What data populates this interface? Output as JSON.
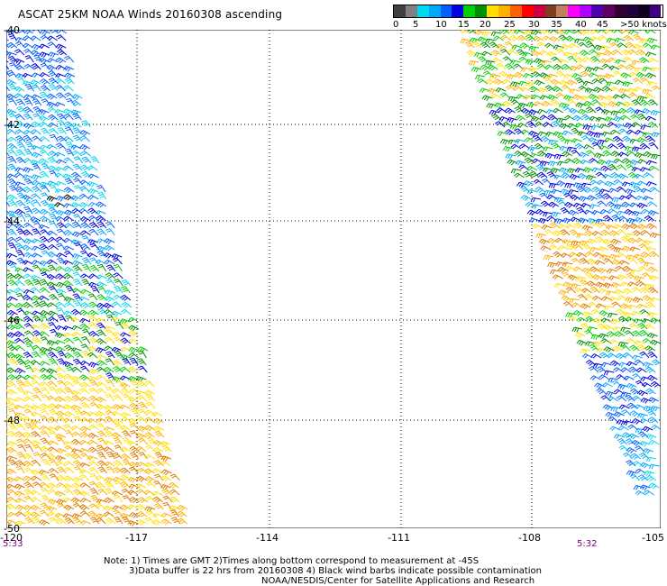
{
  "title": "ASCAT 25KM NOAA Winds 20160308 ascending",
  "colorscale": {
    "colors": [
      "#404040",
      "#808080",
      "#00d8f0",
      "#00a8ff",
      "#0060ff",
      "#0000e0",
      "#00d000",
      "#009000",
      "#ffe000",
      "#ffb000",
      "#ff6000",
      "#ff0000",
      "#d00040",
      "#804020",
      "#c08060",
      "#ff00ff",
      "#b000ff",
      "#5000b0",
      "#600060",
      "#300030",
      "#200040",
      "#100020",
      "#400080"
    ],
    "labels": [
      "0",
      "5",
      "10",
      "15",
      "20",
      "25",
      "30",
      "35",
      "40",
      "45",
      ">50 knots"
    ]
  },
  "map": {
    "lat_labels": [
      "-40",
      "-42",
      "-44",
      "-46",
      "-48",
      "-50"
    ],
    "lon_labels": [
      "-120",
      "-117",
      "-114",
      "-111",
      "-108",
      "-105"
    ],
    "lon_range": [
      -120,
      -105
    ],
    "lat_range": [
      -40,
      -50
    ]
  },
  "times": {
    "left": "5:33",
    "right": "5:32"
  },
  "notes": {
    "line1": "Note: 1) Times are GMT 2)Times along bottom correspond to measurement at -45S",
    "line2": "3)Data buffer is 22 hrs from 20160308 4) Black wind barbs indicate possible contamination",
    "line3": "NOAA/NESDIS/Center for Satellite Applications and Research"
  }
}
